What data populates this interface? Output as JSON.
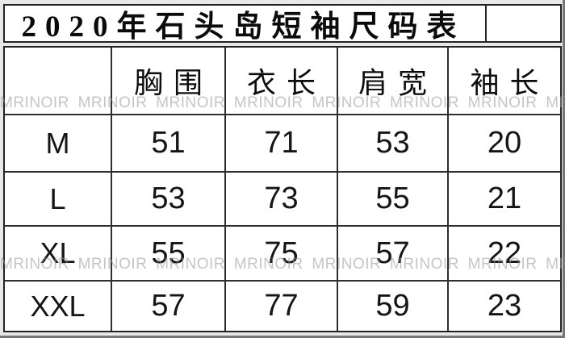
{
  "title": {
    "text": "2020年石头岛短袖尺码表"
  },
  "size_table": {
    "corner": "",
    "headers": [
      "胸围",
      "衣长",
      "肩宽",
      "袖长"
    ],
    "rows": [
      {
        "size": "M",
        "values": [
          "51",
          "71",
          "53",
          "20"
        ]
      },
      {
        "size": "L",
        "values": [
          "53",
          "73",
          "55",
          "21"
        ]
      },
      {
        "size": "XL",
        "values": [
          "55",
          "75",
          "57",
          "22"
        ]
      },
      {
        "size": "XXL",
        "values": [
          "57",
          "77",
          "59",
          "23"
        ]
      }
    ]
  },
  "watermark": {
    "brand": "MRINOIR",
    "band_text": "MRINOIR MRINOIR MRINOIR MRINOIR MRINOIR MRINOIR MRINOIR MRINOIR MRINOIR"
  },
  "colors": {
    "page_bg": "#e8e8e8",
    "cell_bg": "#ffffff",
    "border": "#232323",
    "text": "#141414",
    "watermark": "#c9c9c9"
  },
  "chart_data": {
    "type": "table",
    "title": "2020年石头岛短袖尺码表",
    "columns": [
      "",
      "胸围",
      "衣长",
      "肩宽",
      "袖长"
    ],
    "rows": [
      [
        "M",
        51,
        71,
        53,
        20
      ],
      [
        "L",
        53,
        73,
        55,
        21
      ],
      [
        "XL",
        55,
        75,
        57,
        22
      ],
      [
        "XXL",
        57,
        77,
        59,
        23
      ]
    ]
  }
}
